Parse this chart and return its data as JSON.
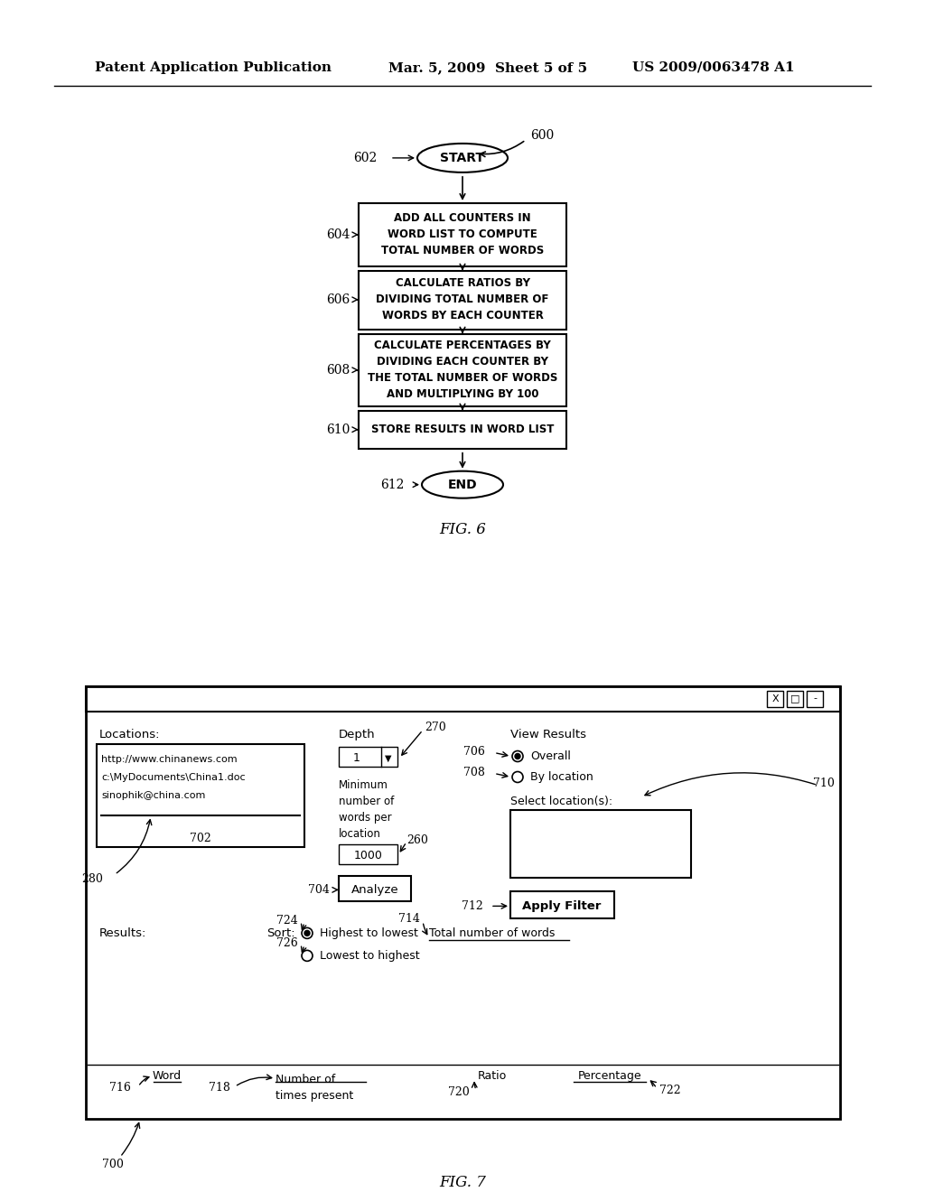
{
  "background_color": "#ffffff",
  "header_left": "Patent Application Publication",
  "header_mid": "Mar. 5, 2009  Sheet 5 of 5",
  "header_right": "US 2009/0063478 A1",
  "fig6_label": "FIG. 6",
  "fig7_label": "FIG. 7",
  "flowchart": {
    "start_label": "START",
    "start_ref": "600",
    "start_ref2": "602",
    "boxes": [
      {
        "ref": "604",
        "text": "ADD ALL COUNTERS IN\nWORD LIST TO COMPUTE\nTOTAL NUMBER OF WORDS"
      },
      {
        "ref": "606",
        "text": "CALCULATE RATIOS BY\nDIVIDING TOTAL NUMBER OF\nWORDS BY EACH COUNTER"
      },
      {
        "ref": "608",
        "text": "CALCULATE PERCENTAGES BY\nDIVIDING EACH COUNTER BY\nTHE TOTAL NUMBER OF WORDS\nAND MULTIPLYING BY 100"
      },
      {
        "ref": "610",
        "text": "STORE RESULTS IN WORD LIST"
      }
    ],
    "end_label": "END",
    "end_ref": "612"
  },
  "gui": {
    "locations_label": "Locations:",
    "locations_content": [
      "http://www.chinanews.com",
      "c:\\MyDocuments\\China1.doc",
      "sinophik@china.com"
    ],
    "locations_ref": "702",
    "scrollbar_ref": "280",
    "depth_label": "Depth",
    "depth_value": "1",
    "depth_ref": "270",
    "dropdown_symbol": "▼",
    "min_words_label": "Minimum\nnumber of\nwords per\nlocation",
    "min_words_value": "1000",
    "min_words_ref": "260",
    "analyze_btn": "Analyze",
    "analyze_ref": "704",
    "view_results_label": "View Results",
    "overall_label": "Overall",
    "overall_ref": "706",
    "bylocation_label": "By location",
    "bylocation_ref": "708",
    "select_location_label": "Select location(s):",
    "select_location_ref": "710",
    "apply_filter_btn": "Apply Filter",
    "apply_filter_ref": "712",
    "results_label": "Results:",
    "sort_label": "Sort:",
    "highest_label": "Highest to lowest",
    "highest_ref": "724",
    "lowest_label": "Lowest to highest",
    "lowest_ref": "726",
    "total_words_label": "Total number of words",
    "total_words_ref": "714",
    "word_label": "Word",
    "word_ref": "716",
    "times_label": "Number of\ntimes present",
    "times_ref": "718",
    "ratio_label": "Ratio",
    "ratio_ref": "720",
    "percentage_label": "Percentage",
    "percentage_ref": "722",
    "gui_ref": "700"
  }
}
